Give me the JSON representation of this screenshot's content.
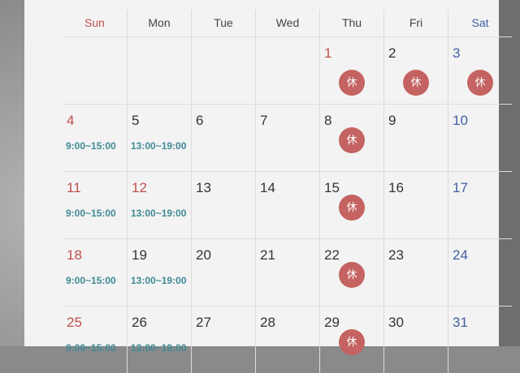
{
  "weekdays": [
    "Sun",
    "Mon",
    "Tue",
    "Wed",
    "Thu",
    "Fri",
    "Sat"
  ],
  "colors": {
    "sunday": "#c0504d",
    "saturday": "#3f5f9e",
    "time": "#3f8a95",
    "closed_badge": "#c46361"
  },
  "closed_label": "休",
  "weeks": [
    [
      null,
      null,
      null,
      null,
      {
        "d": "1",
        "red": true,
        "off": true
      },
      {
        "d": "2",
        "off": true
      },
      {
        "d": "3",
        "off": true
      }
    ],
    [
      {
        "d": "4",
        "t": "9:00~15:00"
      },
      {
        "d": "5",
        "t": "13:00~19:00"
      },
      {
        "d": "6"
      },
      {
        "d": "7"
      },
      {
        "d": "8",
        "off": true
      },
      {
        "d": "9"
      },
      {
        "d": "10"
      }
    ],
    [
      {
        "d": "11",
        "t": "9:00~15:00"
      },
      {
        "d": "12",
        "red": true,
        "t": "13:00~19:00"
      },
      {
        "d": "13"
      },
      {
        "d": "14"
      },
      {
        "d": "15",
        "off": true
      },
      {
        "d": "16"
      },
      {
        "d": "17"
      }
    ],
    [
      {
        "d": "18",
        "t": "9:00~15:00"
      },
      {
        "d": "19",
        "t": "13:00~19:00"
      },
      {
        "d": "20"
      },
      {
        "d": "21"
      },
      {
        "d": "22",
        "off": true
      },
      {
        "d": "23"
      },
      {
        "d": "24"
      }
    ],
    [
      {
        "d": "25",
        "t": "9:00~15:00"
      },
      {
        "d": "26",
        "t": "13:00~19:00"
      },
      {
        "d": "27"
      },
      {
        "d": "28"
      },
      {
        "d": "29",
        "off": true
      },
      {
        "d": "30"
      },
      {
        "d": "31"
      }
    ]
  ]
}
